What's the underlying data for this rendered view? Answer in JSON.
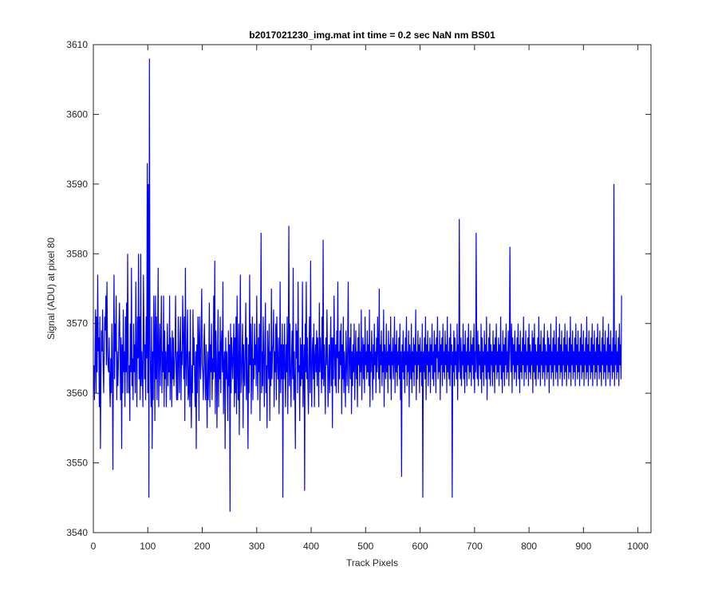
{
  "chart_data": {
    "type": "line",
    "title": "b2017021230_img.mat int time = 0.2 sec  NaN nm BS01",
    "xlabel": "Track Pixels",
    "ylabel": "Signal (ADU) at pixel 80",
    "xlim": [
      0,
      1024
    ],
    "ylim": [
      3540,
      3610
    ],
    "xticks": [
      0,
      100,
      200,
      300,
      400,
      500,
      600,
      700,
      800,
      900,
      1000
    ],
    "yticks": [
      3540,
      3550,
      3560,
      3570,
      3580,
      3590,
      3600,
      3610
    ],
    "xtick_labels": [
      "0",
      "100",
      "200",
      "300",
      "400",
      "500",
      "600",
      "700",
      "800",
      "900",
      "1000"
    ],
    "ytick_labels": [
      "3540",
      "3550",
      "3560",
      "3570",
      "3580",
      "3590",
      "3600",
      "3610"
    ],
    "grid": false,
    "legend": "none",
    "series": [
      {
        "color": "#0000ff",
        "x_start": 1,
        "x_step": 1,
        "values": [
          3564,
          3559,
          3565,
          3572,
          3560,
          3571,
          3563,
          3577,
          3566,
          3568,
          3558,
          3571,
          3552,
          3563,
          3569,
          3566,
          3572,
          3564,
          3560,
          3567,
          3571,
          3569,
          3574,
          3564,
          3576,
          3566,
          3564,
          3563,
          3568,
          3561,
          3558,
          3565,
          3560,
          3570,
          3563,
          3549,
          3567,
          3577,
          3562,
          3570,
          3566,
          3574,
          3559,
          3566,
          3561,
          3564,
          3569,
          3573,
          3566,
          3559,
          3568,
          3552,
          3567,
          3560,
          3572,
          3563,
          3566,
          3558,
          3571,
          3563,
          3573,
          3560,
          3580,
          3566,
          3560,
          3564,
          3556,
          3570,
          3563,
          3578,
          3561,
          3565,
          3559,
          3570,
          3563,
          3567,
          3560,
          3576,
          3565,
          3558,
          3571,
          3565,
          3580,
          3562,
          3571,
          3559,
          3580,
          3561,
          3566,
          3563,
          3558,
          3577,
          3569,
          3562,
          3567,
          3559,
          3571,
          3565,
          3593,
          3560,
          3590,
          3545,
          3608,
          3568,
          3562,
          3558,
          3571,
          3552,
          3566,
          3559,
          3574,
          3568,
          3556,
          3574,
          3562,
          3571,
          3559,
          3566,
          3578,
          3558,
          3565,
          3570,
          3561,
          3567,
          3574,
          3560,
          3566,
          3563,
          3574,
          3558,
          3569,
          3562,
          3566,
          3558,
          3565,
          3570,
          3561,
          3567,
          3563,
          3574,
          3559,
          3568,
          3564,
          3558,
          3569,
          3562,
          3568,
          3561,
          3564,
          3566,
          3574,
          3563,
          3559,
          3566,
          3559,
          3571,
          3565,
          3560,
          3567,
          3571,
          3559,
          3566,
          3564,
          3574,
          3568,
          3562,
          3571,
          3556,
          3578,
          3565,
          3561,
          3567,
          3572,
          3559,
          3560,
          3566,
          3558,
          3572,
          3561,
          3555,
          3564,
          3560,
          3572,
          3564,
          3568,
          3562,
          3558,
          3566,
          3552,
          3567,
          3560,
          3571,
          3568,
          3556,
          3571,
          3565,
          3562,
          3569,
          3575,
          3564,
          3563,
          3559,
          3567,
          3570,
          3563,
          3559,
          3567,
          3561,
          3555,
          3566,
          3559,
          3564,
          3573,
          3558,
          3567,
          3563,
          3570,
          3559,
          3565,
          3562,
          3574,
          3563,
          3579,
          3557,
          3569,
          3565,
          3555,
          3564,
          3572,
          3558,
          3566,
          3562,
          3571,
          3560,
          3567,
          3569,
          3563,
          3576,
          3557,
          3564,
          3566,
          3552,
          3568,
          3562,
          3566,
          3561,
          3556,
          3569,
          3561,
          3567,
          3543,
          3570,
          3560,
          3568,
          3565,
          3562,
          3566,
          3570,
          3558,
          3568,
          3560,
          3571,
          3557,
          3574,
          3563,
          3559,
          3570,
          3554,
          3565,
          3577,
          3560,
          3562,
          3566,
          3570,
          3555,
          3567,
          3563,
          3561,
          3567,
          3573,
          3559,
          3568,
          3562,
          3552,
          3567,
          3560,
          3577,
          3564,
          3570,
          3557,
          3566,
          3571,
          3559,
          3565,
          3562,
          3570,
          3564,
          3567,
          3561,
          3574,
          3565,
          3559,
          3568,
          3563,
          3570,
          3556,
          3567,
          3583,
          3560,
          3566,
          3561,
          3571,
          3565,
          3558,
          3567,
          3573,
          3560,
          3564,
          3555,
          3569,
          3565,
          3562,
          3570,
          3556,
          3566,
          3561,
          3575,
          3562,
          3566,
          3567,
          3572,
          3558,
          3566,
          3563,
          3570,
          3559,
          3571,
          3565,
          3562,
          3568,
          3557,
          3564,
          3576,
          3560,
          3567,
          3562,
          3570,
          3545,
          3567,
          3562,
          3570,
          3564,
          3558,
          3567,
          3563,
          3571,
          3557,
          3566,
          3584,
          3561,
          3570,
          3563,
          3558,
          3565,
          3569,
          3562,
          3578,
          3559,
          3566,
          3561,
          3552,
          3570,
          3565,
          3569,
          3560,
          3576,
          3563,
          3564,
          3556,
          3568,
          3561,
          3567,
          3562,
          3576,
          3558,
          3563,
          3567,
          3546,
          3570,
          3563,
          3576,
          3562,
          3568,
          3561,
          3557,
          3566,
          3571,
          3560,
          3579,
          3564,
          3558,
          3566,
          3568,
          3562,
          3570,
          3558,
          3565,
          3567,
          3563,
          3569,
          3561,
          3568,
          3564,
          3558,
          3573,
          3563,
          3568,
          3565,
          3560,
          3571,
          3562,
          3582,
          3561,
          3567,
          3563,
          3557,
          3568,
          3564,
          3572,
          3565,
          3558,
          3563,
          3567,
          3560,
          3566,
          3571,
          3561,
          3568,
          3555,
          3568,
          3562,
          3574,
          3566,
          3561,
          3567,
          3560,
          3569,
          3565,
          3576,
          3560,
          3566,
          3562,
          3569,
          3564,
          3570,
          3557,
          3567,
          3562,
          3571,
          3560,
          3566,
          3563,
          3558,
          3569,
          3565,
          3561,
          3567,
          3576,
          3560,
          3565,
          3568,
          3562,
          3570,
          3557,
          3566,
          3561,
          3567,
          3563,
          3570,
          3559,
          3564,
          3569,
          3562,
          3566,
          3558,
          3568,
          3564,
          3570,
          3561,
          3566,
          3563,
          3572,
          3559,
          3565,
          3568,
          3562,
          3567,
          3560,
          3571,
          3564,
          3566,
          3562,
          3569,
          3563,
          3567,
          3561,
          3572,
          3558,
          3566,
          3563,
          3569,
          3565,
          3559,
          3567,
          3562,
          3570,
          3564,
          3566,
          3560,
          3568,
          3563,
          3571,
          3566,
          3562,
          3575,
          3560,
          3567,
          3564,
          3569,
          3561,
          3566,
          3563,
          3572,
          3558,
          3567,
          3565,
          3562,
          3570,
          3563,
          3566,
          3560,
          3569,
          3564,
          3567,
          3562,
          3571,
          3559,
          3566,
          3564,
          3568,
          3562,
          3565,
          3571,
          3560,
          3567,
          3563,
          3569,
          3561,
          3566,
          3564,
          3568,
          3562,
          3570,
          3559,
          3566,
          3548,
          3567,
          3563,
          3569,
          3562,
          3566,
          3560,
          3568,
          3564,
          3571,
          3561,
          3566,
          3563,
          3569,
          3558,
          3567,
          3565,
          3562,
          3570,
          3560,
          3566,
          3563,
          3568,
          3561,
          3567,
          3564,
          3572,
          3559,
          3566,
          3562,
          3569,
          3564,
          3567,
          3560,
          3568,
          3563,
          3566,
          3561,
          3570,
          3545,
          3566,
          3563,
          3568,
          3562,
          3571,
          3559,
          3567,
          3564,
          3569,
          3561,
          3566,
          3563,
          3568,
          3560,
          3567,
          3564,
          3570,
          3562,
          3566,
          3561,
          3569,
          3563,
          3567,
          3560,
          3568,
          3565,
          3571,
          3562,
          3566,
          3563,
          3569,
          3559,
          3567,
          3564,
          3568,
          3561,
          3570,
          3563,
          3566,
          3562,
          3569,
          3564,
          3567,
          3560,
          3571,
          3563,
          3566,
          3562,
          3568,
          3561,
          3570,
          3564,
          3567,
          3545,
          3566,
          3563,
          3569,
          3561,
          3568,
          3564,
          3566,
          3562,
          3570,
          3559,
          3567,
          3563,
          3585,
          3565,
          3562,
          3568,
          3561,
          3566,
          3564,
          3570,
          3562,
          3567,
          3560,
          3569,
          3563,
          3566,
          3561,
          3568,
          3564,
          3570,
          3562,
          3566,
          3563,
          3569,
          3561,
          3567,
          3564,
          3568,
          3562,
          3570,
          3560,
          3566,
          3563,
          3583,
          3565,
          3562,
          3569,
          3561,
          3567,
          3564,
          3566,
          3562,
          3570,
          3560,
          3568,
          3563,
          3566,
          3561,
          3569,
          3564,
          3567,
          3562,
          3571,
          3559,
          3566,
          3563,
          3568,
          3562,
          3570,
          3561,
          3567,
          3564,
          3566,
          3561,
          3569,
          3563,
          3567,
          3560,
          3568,
          3564,
          3570,
          3562,
          3566,
          3563,
          3568,
          3561,
          3567,
          3564,
          3571,
          3562,
          3566,
          3560,
          3569,
          3563,
          3567,
          3561,
          3568,
          3564,
          3570,
          3562,
          3566,
          3563,
          3569,
          3561,
          3567,
          3581,
          3566,
          3563,
          3570,
          3560,
          3568,
          3564,
          3567,
          3562,
          3569,
          3563,
          3566,
          3561,
          3568,
          3564,
          3570,
          3562,
          3567,
          3560,
          3569,
          3563,
          3566,
          3562,
          3568,
          3564,
          3571,
          3561,
          3567,
          3563,
          3569,
          3562,
          3566,
          3564,
          3568,
          3561,
          3570,
          3563,
          3567,
          3562,
          3566,
          3564,
          3569,
          3560,
          3568,
          3563,
          3570,
          3562,
          3567,
          3561,
          3566,
          3564,
          3568,
          3562,
          3571,
          3563,
          3567,
          3561,
          3569,
          3564,
          3566,
          3562,
          3568,
          3563,
          3570,
          3561,
          3567,
          3564,
          3566,
          3562,
          3569,
          3563,
          3568,
          3560,
          3567,
          3564,
          3570,
          3562,
          3566,
          3563,
          3568,
          3561,
          3569,
          3564,
          3567,
          3562,
          3571,
          3563,
          3566,
          3561,
          3568,
          3564,
          3570,
          3562,
          3567,
          3563,
          3569,
          3561,
          3566,
          3564,
          3568,
          3562,
          3570,
          3563,
          3567,
          3561,
          3569,
          3564,
          3566,
          3562,
          3568,
          3563,
          3571,
          3561,
          3567,
          3564,
          3569,
          3562,
          3566,
          3563,
          3568,
          3561,
          3570,
          3564,
          3567,
          3562,
          3569,
          3563,
          3566,
          3561,
          3568,
          3564,
          3570,
          3562,
          3567,
          3563,
          3569,
          3561,
          3566,
          3564,
          3568,
          3562,
          3571,
          3563,
          3567,
          3561,
          3569,
          3564,
          3566,
          3562,
          3568,
          3563,
          3570,
          3561,
          3567,
          3564,
          3569,
          3562,
          3566,
          3563,
          3568,
          3561,
          3570,
          3564,
          3567,
          3562,
          3569,
          3563,
          3566,
          3561,
          3568,
          3564,
          3571,
          3562,
          3567,
          3563,
          3569,
          3561,
          3566,
          3564,
          3568,
          3562,
          3570,
          3563,
          3567,
          3561,
          3569,
          3564,
          3566,
          3562,
          3568,
          3563,
          3590,
          3561,
          3567,
          3564,
          3569,
          3562,
          3566,
          3563,
          3568,
          3561,
          3570,
          3564,
          3567,
          3562,
          3574
        ]
      }
    ]
  }
}
